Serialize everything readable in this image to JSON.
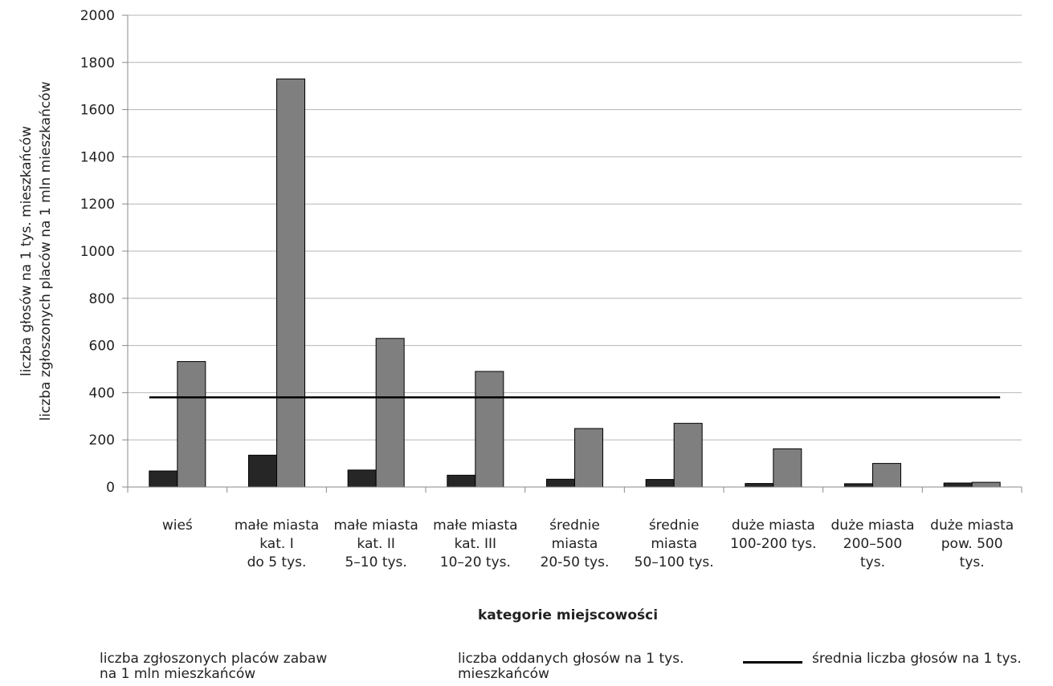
{
  "chart_data": {
    "type": "bar",
    "title": "",
    "xlabel": "kategorie miejscowości",
    "ylabel": [
      "liczba głosów na 1 tys. mieszkańców",
      "liczba zgłoszonych placów na 1 mln mieszkańców"
    ],
    "ylim": [
      0,
      2000
    ],
    "yticks": [
      0,
      200,
      400,
      600,
      800,
      1000,
      1200,
      1400,
      1600,
      1800,
      2000
    ],
    "grid": true,
    "legend_position": "bottom",
    "categories": [
      [
        "wieś"
      ],
      [
        "małe miasta",
        "kat. I",
        "do 5 tys."
      ],
      [
        "małe miasta",
        "kat. II",
        "5–10 tys."
      ],
      [
        "małe miasta",
        "kat. III",
        "10–20 tys."
      ],
      [
        "średnie",
        "miasta",
        "20-50 tys."
      ],
      [
        "średnie",
        "miasta",
        "50–100 tys."
      ],
      [
        "duże miasta",
        "100-200 tys."
      ],
      [
        "duże miasta",
        "200–500",
        "tys."
      ],
      [
        "duże miasta",
        "pow. 500",
        "tys."
      ]
    ],
    "series": [
      {
        "name": [
          "liczba zgłoszonych placów zabaw",
          "na 1 mln mieszkańców"
        ],
        "kind": "bar",
        "color": "#262626",
        "values": [
          68,
          135,
          72,
          50,
          33,
          32,
          15,
          14,
          17
        ]
      },
      {
        "name": [
          "liczba oddanych głosów na 1 tys.",
          "mieszkańców"
        ],
        "kind": "bar",
        "color": "#7f7f7f",
        "values": [
          532,
          1730,
          630,
          490,
          248,
          270,
          162,
          100,
          20
        ]
      },
      {
        "name": [
          "średnia liczba głosów na 1 tys."
        ],
        "kind": "line",
        "color": "#000000",
        "values": [
          380,
          380,
          380,
          380,
          380,
          380,
          380,
          380,
          380
        ]
      }
    ]
  }
}
